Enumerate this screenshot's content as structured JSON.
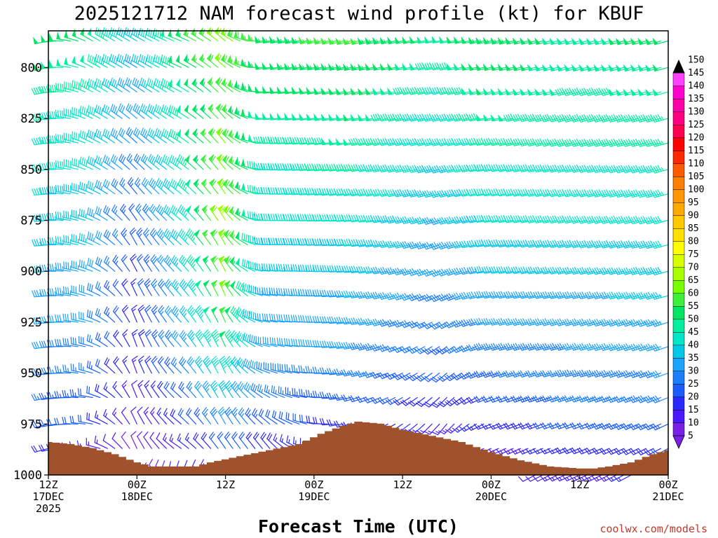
{
  "chart_data": {
    "type": "wind-barb time-height profile",
    "title": "2025121712 NAM forecast wind profile (kt) for KBUF",
    "xlabel": "Forecast Time (UTC)",
    "ylabel": "",
    "units": "kt",
    "y_axis": {
      "type": "pressure",
      "inverted": true,
      "range": [
        1000,
        782
      ],
      "ticks": [
        "800",
        "825",
        "850",
        "875",
        "900",
        "925",
        "950",
        "975",
        "1000"
      ]
    },
    "x_axis": {
      "range": [
        "2025-12-17T12Z",
        "2025-12-21T00Z"
      ],
      "step_hours": 1,
      "ticks": [
        {
          "lines": [
            "12Z",
            "17DEC",
            "2025"
          ]
        },
        {
          "lines": [
            "00Z",
            "18DEC"
          ]
        },
        {
          "lines": [
            "12Z"
          ]
        },
        {
          "lines": [
            "00Z",
            "19DEC"
          ]
        },
        {
          "lines": [
            "12Z"
          ]
        },
        {
          "lines": [
            "00Z",
            "20DEC"
          ]
        },
        {
          "lines": [
            "12Z"
          ]
        },
        {
          "lines": [
            "00Z",
            "21DEC"
          ]
        }
      ]
    },
    "pressure_levels": [
      1000,
      987,
      975,
      962,
      950,
      937,
      925,
      912,
      900,
      887,
      875,
      862,
      850,
      837,
      825,
      812,
      800,
      787
    ],
    "wind_keyframes": [
      {
        "hour": 0,
        "speeds": [
          12,
          18,
          22,
          25,
          28,
          30,
          32,
          34,
          35,
          37,
          38,
          40,
          42,
          44,
          45,
          47,
          50,
          52
        ],
        "dirs": [
          250,
          255,
          255,
          258,
          260,
          262,
          262,
          265,
          265,
          265,
          265,
          265,
          262,
          262,
          260,
          260,
          258,
          258
        ]
      },
      {
        "hour": 6,
        "speeds": [
          10,
          15,
          20,
          22,
          25,
          28,
          30,
          32,
          33,
          35,
          36,
          38,
          40,
          42,
          44,
          45,
          48,
          50
        ],
        "dirs": [
          270,
          275,
          280,
          280,
          285,
          285,
          285,
          288,
          290,
          290,
          290,
          292,
          295,
          295,
          295,
          298,
          298,
          300
        ]
      },
      {
        "hour": 12,
        "speeds": [
          6,
          8,
          10,
          12,
          14,
          15,
          16,
          17,
          18,
          20,
          22,
          24,
          26,
          28,
          30,
          32,
          34,
          36
        ],
        "dirs": [
          330,
          335,
          335,
          338,
          340,
          340,
          338,
          335,
          332,
          330,
          325,
          320,
          315,
          312,
          310,
          305,
          300,
          300
        ]
      },
      {
        "hour": 18,
        "speeds": [
          10,
          14,
          18,
          22,
          26,
          30,
          33,
          35,
          37,
          39,
          40,
          42,
          44,
          45,
          47,
          48,
          50,
          52
        ],
        "dirs": [
          300,
          305,
          310,
          312,
          315,
          318,
          318,
          318,
          315,
          312,
          310,
          308,
          305,
          302,
          300,
          298,
          295,
          292
        ]
      },
      {
        "hour": 24,
        "speeds": [
          14,
          22,
          30,
          38,
          44,
          50,
          55,
          60,
          62,
          64,
          65,
          63,
          62,
          60,
          58,
          58,
          60,
          62
        ],
        "dirs": [
          320,
          325,
          330,
          332,
          335,
          335,
          335,
          335,
          332,
          330,
          328,
          325,
          322,
          320,
          318,
          315,
          312,
          310
        ]
      },
      {
        "hour": 30,
        "speeds": [
          12,
          18,
          22,
          26,
          28,
          30,
          32,
          34,
          36,
          38,
          40,
          42,
          44,
          46,
          48,
          50,
          52,
          54
        ],
        "dirs": [
          330,
          320,
          310,
          300,
          290,
          285,
          280,
          278,
          275,
          272,
          270,
          270,
          268,
          268,
          265,
          265,
          262,
          262
        ]
      },
      {
        "hour": 42,
        "speeds": [
          8,
          12,
          18,
          22,
          26,
          30,
          32,
          35,
          37,
          40,
          42,
          44,
          46,
          48,
          50,
          52,
          54,
          56
        ],
        "dirs": [
          250,
          250,
          252,
          255,
          258,
          260,
          262,
          262,
          265,
          265,
          265,
          262,
          262,
          260,
          260,
          258,
          258,
          255
        ]
      },
      {
        "hour": 54,
        "speeds": [
          6,
          10,
          14,
          18,
          22,
          24,
          26,
          28,
          30,
          32,
          34,
          36,
          38,
          40,
          42,
          44,
          46,
          48
        ],
        "dirs": [
          200,
          210,
          220,
          225,
          230,
          235,
          240,
          245,
          248,
          250,
          252,
          255,
          255,
          258,
          258,
          260,
          260,
          262
        ]
      },
      {
        "hour": 60,
        "speeds": [
          8,
          12,
          16,
          20,
          24,
          28,
          30,
          33,
          35,
          38,
          40,
          42,
          44,
          46,
          48,
          50,
          52,
          54
        ],
        "dirs": [
          240,
          245,
          248,
          250,
          252,
          255,
          258,
          260,
          262,
          262,
          262,
          262,
          262,
          260,
          260,
          258,
          258,
          258
        ]
      },
      {
        "hour": 72,
        "speeds": [
          14,
          18,
          22,
          26,
          28,
          30,
          32,
          34,
          36,
          38,
          40,
          42,
          44,
          45,
          46,
          47,
          48,
          48
        ],
        "dirs": [
          245,
          248,
          250,
          252,
          255,
          255,
          255,
          258,
          258,
          258,
          258,
          258,
          258,
          255,
          255,
          255,
          255,
          255
        ]
      },
      {
        "hour": 84,
        "speeds": [
          16,
          20,
          24,
          28,
          30,
          32,
          34,
          36,
          38,
          40,
          42,
          44,
          45,
          46,
          47,
          48,
          50,
          52
        ],
        "dirs": [
          240,
          242,
          245,
          248,
          250,
          252,
          252,
          255,
          255,
          255,
          255,
          255,
          255,
          255,
          255,
          255,
          255,
          255
        ]
      }
    ],
    "terrain_surface_hpa": [
      {
        "hour": 0,
        "p": 984
      },
      {
        "hour": 3,
        "p": 985
      },
      {
        "hour": 6,
        "p": 987
      },
      {
        "hour": 9,
        "p": 990
      },
      {
        "hour": 12,
        "p": 994
      },
      {
        "hour": 14,
        "p": 996
      },
      {
        "hour": 18,
        "p": 996
      },
      {
        "hour": 20,
        "p": 996
      },
      {
        "hour": 22,
        "p": 994
      },
      {
        "hour": 26,
        "p": 991
      },
      {
        "hour": 30,
        "p": 988
      },
      {
        "hour": 34,
        "p": 985
      },
      {
        "hour": 37,
        "p": 980
      },
      {
        "hour": 40,
        "p": 976
      },
      {
        "hour": 42,
        "p": 974
      },
      {
        "hour": 45,
        "p": 975
      },
      {
        "hour": 48,
        "p": 978
      },
      {
        "hour": 52,
        "p": 981
      },
      {
        "hour": 56,
        "p": 984
      },
      {
        "hour": 60,
        "p": 989
      },
      {
        "hour": 64,
        "p": 993
      },
      {
        "hour": 68,
        "p": 996
      },
      {
        "hour": 72,
        "p": 997
      },
      {
        "hour": 74,
        "p": 997
      },
      {
        "hour": 76,
        "p": 996
      },
      {
        "hour": 79,
        "p": 994
      },
      {
        "hour": 82,
        "p": 990
      },
      {
        "hour": 84,
        "p": 988
      }
    ],
    "colorbar": {
      "ticks": [
        "5",
        "10",
        "15",
        "20",
        "25",
        "30",
        "35",
        "40",
        "45",
        "50",
        "55",
        "60",
        "65",
        "70",
        "75",
        "80",
        "85",
        "90",
        "95",
        "100",
        "105",
        "110",
        "115",
        "120",
        "125",
        "130",
        "135",
        "140",
        "145",
        "150"
      ],
      "colors": [
        "#7a1fe6",
        "#4b19ff",
        "#2a28ff",
        "#1a5cff",
        "#1a7fff",
        "#1aa3ff",
        "#00c8e6",
        "#00e6c8",
        "#00f0a0",
        "#00e664",
        "#3cf03c",
        "#78ff00",
        "#a8ff00",
        "#d8ff00",
        "#ffff00",
        "#ffe100",
        "#ffc800",
        "#ffaa00",
        "#ff9600",
        "#ff7f00",
        "#ff5a00",
        "#ff2800",
        "#ff0000",
        "#ff0050",
        "#ff0080",
        "#ff00a8",
        "#ff00d0",
        "#ff40ff"
      ]
    },
    "terrain_color": "#a0522d",
    "credit": "coolwx.com/models"
  }
}
